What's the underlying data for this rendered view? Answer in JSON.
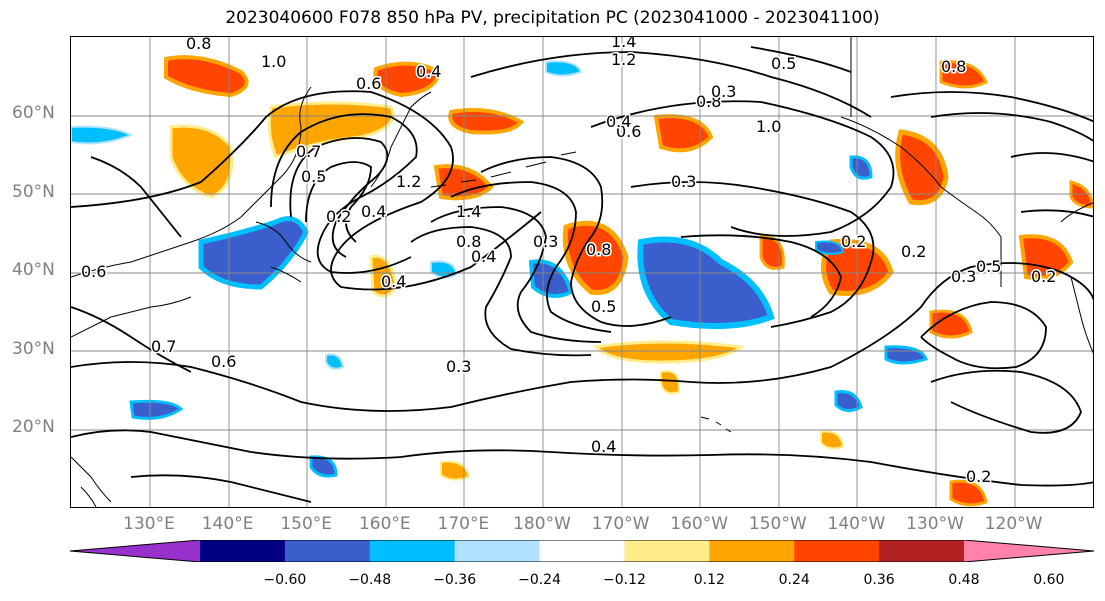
{
  "title": "2023040600 F078 850 hPa PV, precipitation PC (2023041000 - 2023041100)",
  "lat_labels": [
    "60°N",
    "50°N",
    "40°N",
    "30°N",
    "20°N"
  ],
  "lon_labels": [
    "130°E",
    "140°E",
    "150°E",
    "160°E",
    "170°E",
    "180°W",
    "170°W",
    "160°W",
    "150°W",
    "140°W",
    "130°W",
    "120°W"
  ],
  "colorbar": {
    "ticks": [
      "−0.60",
      "−0.48",
      "−0.36",
      "−0.24",
      "−0.12",
      "0.12",
      "0.24",
      "0.36",
      "0.48",
      "0.60"
    ],
    "colors": [
      "#9932cc",
      "#000080",
      "#3a5fcd",
      "#00bfff",
      "#b0e2ff",
      "#ffffff",
      "#ffec8b",
      "#ffa500",
      "#ff4500",
      "#b22222",
      "#ff82ab"
    ],
    "extend": "both"
  },
  "contour_labels": [
    "0.8",
    "1.0",
    "0.4",
    "0.6",
    "1.4",
    "1.2",
    "0.5",
    "0.8",
    "0.6",
    "0.4",
    "0.3",
    "1.0",
    "0.8",
    "0.3",
    "0.4",
    "0.5",
    "0.2",
    "1.2",
    "1.4",
    "0.8",
    "0.4",
    "0.7",
    "0.3",
    "0.8",
    "0.5",
    "0.3",
    "0.4",
    "0.6",
    "0.7",
    "0.6",
    "0.5",
    "0.2",
    "0.2",
    "0.3",
    "0.2",
    "0.4",
    "0.2"
  ],
  "layers": {
    "positive_shading": "precipitation PC positive",
    "negative_shading": "precipitation PC negative",
    "contours": "850 hPa PV"
  },
  "grid": true
}
